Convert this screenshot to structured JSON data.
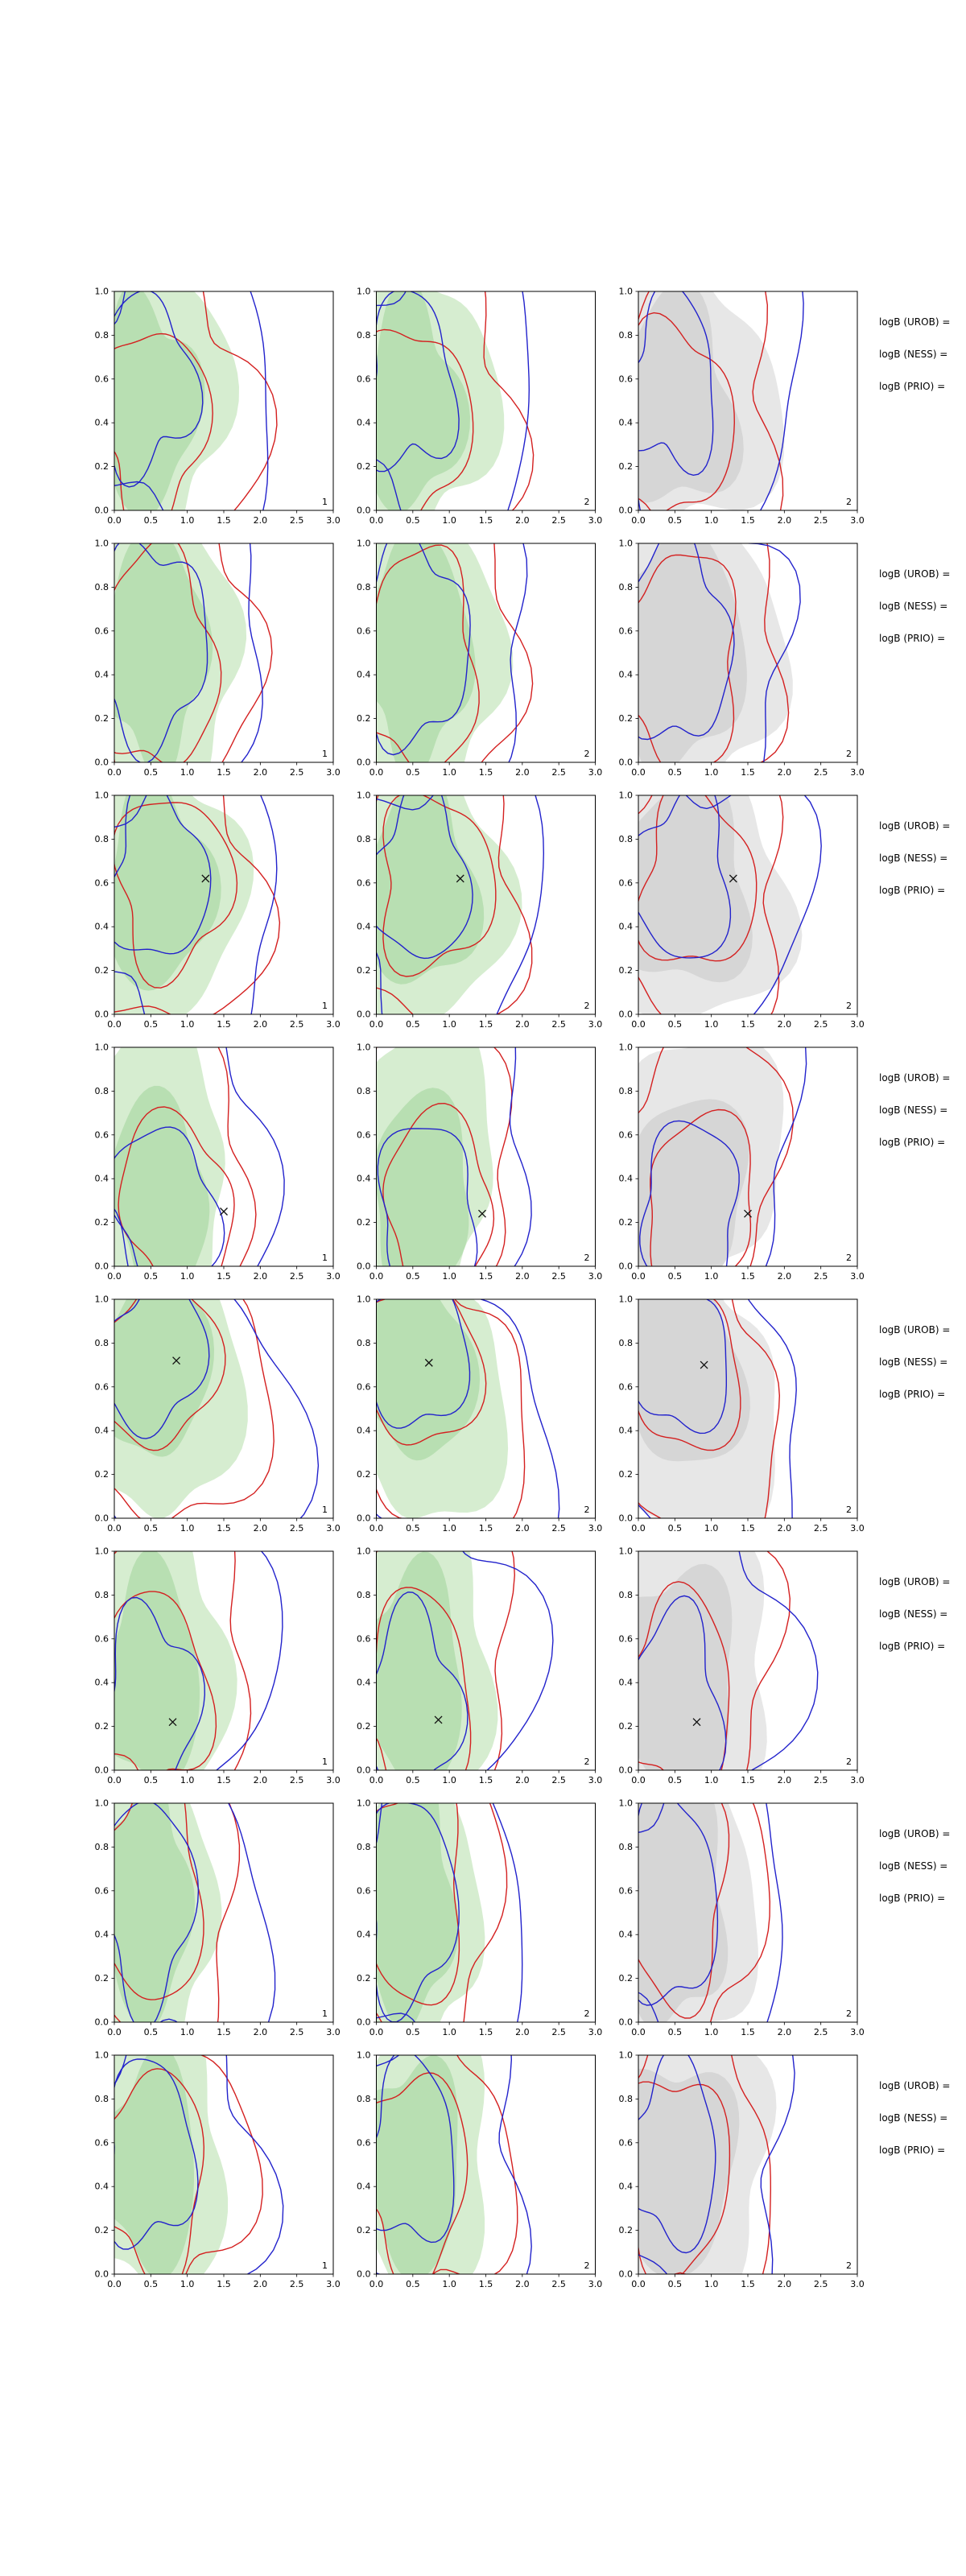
{
  "colors": {
    "blue": "#2222cc",
    "red": "#d42020",
    "green_fill_outer": "#d2ebcb",
    "green_fill_inner": "#b5ddae",
    "gray_fill_outer": "#e4e4e4",
    "gray_fill_inner": "#d4d4d4",
    "axis": "#000000",
    "marker": "#111111",
    "corner_label": "#222222"
  },
  "chart_data": {
    "type": "contour",
    "grid": {
      "rows": 8,
      "cols": 3
    },
    "x_range": [
      0,
      3
    ],
    "y_range": [
      0,
      1
    ],
    "x_ticks": [
      "0.0",
      "0.5",
      "1.0",
      "1.5",
      "2.0",
      "2.5",
      "3.0"
    ],
    "y_ticks": [
      "0.0",
      "0.2",
      "0.4",
      "0.6",
      "0.8",
      "1.0"
    ],
    "description": "8x3 grid of 2D KDE contour panels; blue and red contour lines over filled density (green in columns 1-2, gray in column 3); some rows show an x marker at the reference point; per-panel corner label 1 or 2",
    "rows": [
      {
        "annotations": [
          "logB (UROB) =",
          "logB (NESS) =",
          "logB (PRIO) ="
        ],
        "base_shapes": {
          "fill_outer": [
            0.52,
            0.5,
            1.02,
            0.63,
            3,
            0.16,
            0.7,
            5,
            0.07,
            2.1
          ],
          "fill_inner": [
            0.48,
            0.48,
            0.62,
            0.48,
            3,
            0.18,
            1.4,
            4,
            0.08,
            0.3
          ],
          "red_outer": [
            0.68,
            0.46,
            1.28,
            0.67,
            3,
            0.21,
            2.5,
            5,
            0.09,
            1.0
          ],
          "red_inner": [
            0.52,
            0.4,
            0.74,
            0.44,
            3,
            0.17,
            0.2,
            4,
            0.1,
            2.3
          ],
          "blue_outer": [
            0.82,
            0.55,
            1.45,
            0.69,
            3,
            0.23,
            4.1,
            4,
            0.11,
            0.5
          ],
          "blue_inner": [
            0.46,
            0.58,
            0.6,
            0.4,
            3,
            0.19,
            1.8,
            4,
            0.12,
            3.0
          ]
        },
        "panels": [
          {
            "corner_label": "1",
            "fill": "green",
            "phase_offset": 0.0,
            "fill_scale": 1.0,
            "marker": null
          },
          {
            "corner_label": "2",
            "fill": "green",
            "phase_offset": 0.9,
            "fill_scale": 1.05,
            "marker": null
          },
          {
            "corner_label": "2",
            "fill": "gray",
            "phase_offset": 1.8,
            "fill_scale": 1.35,
            "marker": null
          }
        ]
      },
      {
        "annotations": [
          "logB (UROB) =",
          "logB (NESS) =",
          "logB (PRIO) ="
        ],
        "base_shapes": {
          "fill_outer": [
            0.6,
            0.5,
            1.08,
            0.66,
            4,
            0.1,
            0.5,
            6,
            0.05,
            1.2
          ],
          "fill_inner": [
            0.55,
            0.52,
            0.7,
            0.52,
            4,
            0.12,
            1.0,
            5,
            0.06,
            2.4
          ],
          "red_outer": [
            0.72,
            0.5,
            1.25,
            0.7,
            4,
            0.12,
            2.0,
            6,
            0.06,
            0.8
          ],
          "red_inner": [
            0.58,
            0.46,
            0.8,
            0.5,
            3,
            0.12,
            3.1,
            5,
            0.08,
            1.6
          ],
          "blue_outer": [
            0.75,
            0.52,
            1.3,
            0.7,
            4,
            0.13,
            4.6,
            5,
            0.07,
            2.7
          ],
          "blue_inner": [
            0.52,
            0.54,
            0.72,
            0.46,
            3,
            0.12,
            0.9,
            5,
            0.09,
            3.8
          ]
        },
        "panels": [
          {
            "corner_label": "1",
            "fill": "green",
            "phase_offset": 0.0,
            "fill_scale": 1.0,
            "marker": null
          },
          {
            "corner_label": "2",
            "fill": "green",
            "phase_offset": 0.9,
            "fill_scale": 1.05,
            "marker": null
          },
          {
            "corner_label": "2",
            "fill": "gray",
            "phase_offset": 1.8,
            "fill_scale": 1.3,
            "marker": null
          }
        ]
      },
      {
        "annotations": [
          "logB (UROB) =",
          "logB (NESS) =",
          "logB (PRIO) ="
        ],
        "base_shapes": {
          "fill_outer": [
            0.62,
            0.55,
            1.1,
            0.62,
            3,
            0.14,
            1.1,
            5,
            0.06,
            0.2
          ],
          "fill_inner": [
            0.6,
            0.58,
            0.72,
            0.46,
            3,
            0.15,
            2.0,
            4,
            0.07,
            1.1
          ],
          "red_outer": [
            0.75,
            0.55,
            1.3,
            0.64,
            3,
            0.18,
            3.0,
            5,
            0.08,
            2.0
          ],
          "red_inner": [
            0.8,
            0.6,
            0.78,
            0.4,
            3,
            0.15,
            0.8,
            4,
            0.09,
            2.9
          ],
          "blue_outer": [
            0.85,
            0.5,
            1.48,
            0.66,
            3,
            0.24,
            5.0,
            4,
            0.12,
            1.4
          ],
          "blue_inner": [
            0.6,
            0.62,
            0.66,
            0.38,
            3,
            0.16,
            2.6,
            4,
            0.1,
            0.1
          ]
        },
        "panels": [
          {
            "corner_label": "1",
            "fill": "green",
            "phase_offset": 0.0,
            "fill_scale": 1.0,
            "marker": [
              1.25,
              0.62
            ]
          },
          {
            "corner_label": "2",
            "fill": "green",
            "phase_offset": 0.9,
            "fill_scale": 1.05,
            "marker": [
              1.15,
              0.62
            ]
          },
          {
            "corner_label": "2",
            "fill": "gray",
            "phase_offset": 1.8,
            "fill_scale": 1.3,
            "marker": [
              1.3,
              0.62
            ]
          }
        ]
      },
      {
        "annotations": [
          "logB (UROB) =",
          "logB (NESS) =",
          "logB (PRIO) ="
        ],
        "base_shapes": {
          "fill_outer": [
            0.58,
            0.42,
            1.05,
            0.62,
            2,
            0.18,
            4.6,
            5,
            0.08,
            0.9
          ],
          "fill_inner": [
            0.62,
            0.32,
            0.7,
            0.42,
            2,
            0.16,
            4.0,
            4,
            0.08,
            1.8
          ],
          "red_outer": [
            0.72,
            0.4,
            1.28,
            0.64,
            2,
            0.2,
            4.2,
            5,
            0.09,
            2.7
          ],
          "red_inner": [
            0.85,
            0.28,
            0.8,
            0.38,
            2,
            0.15,
            3.6,
            4,
            0.09,
            0.7
          ],
          "blue_outer": [
            0.85,
            0.52,
            1.45,
            0.7,
            2,
            0.22,
            3.8,
            4,
            0.11,
            1.9
          ],
          "blue_inner": [
            0.7,
            0.26,
            0.72,
            0.36,
            2,
            0.14,
            3.2,
            4,
            0.1,
            2.8
          ]
        },
        "panels": [
          {
            "corner_label": "1",
            "fill": "green",
            "phase_offset": 0.0,
            "fill_scale": 1.0,
            "marker": [
              1.5,
              0.25
            ]
          },
          {
            "corner_label": "2",
            "fill": "green",
            "phase_offset": 0.9,
            "fill_scale": 1.05,
            "marker": [
              1.45,
              0.24
            ]
          },
          {
            "corner_label": "2",
            "fill": "gray",
            "phase_offset": 1.8,
            "fill_scale": 1.3,
            "marker": [
              1.5,
              0.24
            ]
          }
        ]
      },
      {
        "annotations": [
          "logB (UROB) =",
          "logB (NESS) =",
          "logB (PRIO) ="
        ],
        "base_shapes": {
          "fill_outer": [
            0.6,
            0.58,
            1.02,
            0.64,
            2,
            0.17,
            1.5,
            5,
            0.08,
            3.0
          ],
          "fill_inner": [
            0.55,
            0.68,
            0.68,
            0.44,
            2,
            0.15,
            1.2,
            4,
            0.08,
            0.4
          ],
          "red_outer": [
            0.7,
            0.56,
            1.26,
            0.66,
            2,
            0.19,
            1.8,
            5,
            0.09,
            4.0
          ],
          "red_inner": [
            0.6,
            0.7,
            0.76,
            0.4,
            2,
            0.14,
            1.0,
            4,
            0.09,
            1.5
          ],
          "blue_outer": [
            0.88,
            0.48,
            1.5,
            0.7,
            2,
            0.23,
            2.2,
            4,
            0.12,
            3.3
          ],
          "blue_inner": [
            0.55,
            0.74,
            0.64,
            0.36,
            2,
            0.15,
            0.6,
            4,
            0.1,
            2.1
          ]
        },
        "panels": [
          {
            "corner_label": "1",
            "fill": "green",
            "phase_offset": 0.0,
            "fill_scale": 1.0,
            "marker": [
              0.85,
              0.72
            ]
          },
          {
            "corner_label": "2",
            "fill": "green",
            "phase_offset": 0.9,
            "fill_scale": 1.05,
            "marker": [
              0.72,
              0.71
            ]
          },
          {
            "corner_label": "2",
            "fill": "gray",
            "phase_offset": 1.8,
            "fill_scale": 1.3,
            "marker": [
              0.9,
              0.7
            ]
          }
        ]
      },
      {
        "annotations": [
          "logB (UROB) =",
          "logB (NESS) =",
          "logB (PRIO) ="
        ],
        "base_shapes": {
          "fill_outer": [
            0.55,
            0.48,
            1.0,
            0.65,
            3,
            0.13,
            2.8,
            5,
            0.07,
            1.6
          ],
          "fill_inner": [
            0.5,
            0.42,
            0.66,
            0.5,
            3,
            0.14,
            3.5,
            4,
            0.07,
            0.8
          ],
          "red_outer": [
            0.68,
            0.5,
            1.22,
            0.68,
            3,
            0.17,
            4.4,
            5,
            0.08,
            2.9
          ],
          "red_inner": [
            0.55,
            0.34,
            0.74,
            0.46,
            3,
            0.14,
            2.2,
            4,
            0.09,
            3.7
          ],
          "blue_outer": [
            0.78,
            0.52,
            1.4,
            0.7,
            3,
            0.2,
            0.9,
            4,
            0.1,
            4.4
          ],
          "blue_inner": [
            0.5,
            0.3,
            0.62,
            0.42,
            3,
            0.15,
            1.6,
            4,
            0.1,
            0.2
          ]
        },
        "panels": [
          {
            "corner_label": "1",
            "fill": "green",
            "phase_offset": 0.0,
            "fill_scale": 1.0,
            "marker": [
              0.8,
              0.22
            ]
          },
          {
            "corner_label": "2",
            "fill": "green",
            "phase_offset": 0.9,
            "fill_scale": 1.05,
            "marker": [
              0.85,
              0.23
            ]
          },
          {
            "corner_label": "2",
            "fill": "gray",
            "phase_offset": 1.8,
            "fill_scale": 1.3,
            "marker": [
              0.8,
              0.22
            ]
          }
        ]
      },
      {
        "annotations": [
          "logB (UROB) =",
          "logB (NESS) =",
          "logB (PRIO) ="
        ],
        "base_shapes": {
          "fill_outer": [
            0.48,
            0.52,
            0.88,
            0.68,
            4,
            0.1,
            1.3,
            6,
            0.05,
            2.5
          ],
          "fill_inner": [
            0.44,
            0.55,
            0.58,
            0.55,
            4,
            0.11,
            2.1,
            5,
            0.06,
            1.0
          ],
          "red_outer": [
            0.6,
            0.55,
            1.1,
            0.7,
            3,
            0.16,
            5.3,
            5,
            0.08,
            0.4
          ],
          "red_inner": [
            0.5,
            0.6,
            0.7,
            0.52,
            3,
            0.13,
            4.0,
            4,
            0.08,
            2.6
          ],
          "blue_outer": [
            0.75,
            0.5,
            1.35,
            0.7,
            3,
            0.21,
            2.9,
            4,
            0.11,
            5.1
          ],
          "blue_inner": [
            0.46,
            0.55,
            0.6,
            0.48,
            3,
            0.14,
            0.4,
            4,
            0.09,
            1.9
          ]
        },
        "panels": [
          {
            "corner_label": "1",
            "fill": "green",
            "phase_offset": 0.0,
            "fill_scale": 1.0,
            "marker": null
          },
          {
            "corner_label": "2",
            "fill": "green",
            "phase_offset": 0.9,
            "fill_scale": 1.05,
            "marker": null
          },
          {
            "corner_label": "2",
            "fill": "gray",
            "phase_offset": 1.8,
            "fill_scale": 1.3,
            "marker": null
          }
        ]
      },
      {
        "annotations": [
          "logB (UROB) =",
          "logB (NESS) =",
          "logB (PRIO) ="
        ],
        "base_shapes": {
          "fill_outer": [
            0.55,
            0.52,
            0.98,
            0.63,
            3,
            0.14,
            3.9,
            5,
            0.06,
            2.8
          ],
          "fill_inner": [
            0.5,
            0.5,
            0.64,
            0.48,
            3,
            0.15,
            4.6,
            4,
            0.07,
            1.7
          ],
          "red_outer": [
            0.65,
            0.5,
            1.18,
            0.66,
            3,
            0.17,
            1.6,
            5,
            0.08,
            3.5
          ],
          "red_inner": [
            0.52,
            0.46,
            0.72,
            0.46,
            3,
            0.14,
            5.0,
            4,
            0.09,
            0.9
          ],
          "blue_outer": [
            0.75,
            0.52,
            1.35,
            0.67,
            3,
            0.2,
            3.4,
            4,
            0.1,
            2.4
          ],
          "blue_inner": [
            0.48,
            0.55,
            0.6,
            0.42,
            3,
            0.15,
            2.3,
            4,
            0.1,
            4.2
          ]
        },
        "panels": [
          {
            "corner_label": "1",
            "fill": "green",
            "phase_offset": 0.0,
            "fill_scale": 1.0,
            "marker": null
          },
          {
            "corner_label": "2",
            "fill": "green",
            "phase_offset": 0.9,
            "fill_scale": 1.05,
            "marker": null
          },
          {
            "corner_label": "2",
            "fill": "gray",
            "phase_offset": 1.8,
            "fill_scale": 1.3,
            "marker": null
          }
        ]
      }
    ]
  }
}
